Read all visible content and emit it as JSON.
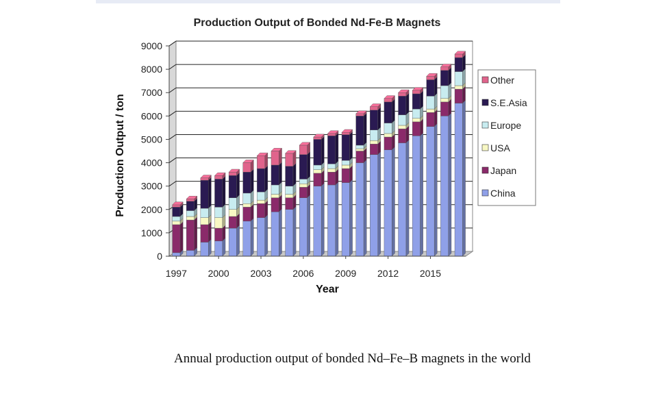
{
  "chart_data": {
    "type": "bar",
    "stacked": true,
    "title": "Production Output of Bonded Nd-Fe-B Magnets",
    "xlabel": "Year",
    "ylabel": "Production Output / ton",
    "ylim": [
      0,
      9000
    ],
    "yticks": [
      "0",
      "1000",
      "2000",
      "3000",
      "4000",
      "5000",
      "6000",
      "7000",
      "8000",
      "9000"
    ],
    "categories": [
      "1997",
      "1998",
      "1999",
      "2000",
      "2001",
      "2002",
      "2003",
      "2004",
      "2005",
      "2006",
      "2007",
      "2008",
      "2009",
      "2010",
      "2011",
      "2012",
      "2013",
      "2014",
      "2015",
      "2016",
      "2017"
    ],
    "xtick_labels": [
      "1997",
      "2000",
      "2003",
      "2006",
      "2009",
      "2012",
      "2015"
    ],
    "grid": true,
    "legend_position": "right",
    "series": [
      {
        "name": "China",
        "color": "#8fa0e8",
        "values": [
          150,
          250,
          600,
          650,
          1200,
          1500,
          1650,
          1900,
          2000,
          2500,
          3000,
          3050,
          3150,
          4000,
          4350,
          4550,
          4850,
          5150,
          5550,
          6000,
          6550
        ]
      },
      {
        "name": "Japan",
        "color": "#8a2a6a",
        "values": [
          1200,
          1300,
          750,
          550,
          500,
          600,
          600,
          600,
          500,
          450,
          550,
          550,
          600,
          500,
          450,
          550,
          600,
          600,
          600,
          600,
          600
        ]
      },
      {
        "name": "USA",
        "color": "#f8f8c4",
        "values": [
          150,
          150,
          300,
          450,
          300,
          150,
          150,
          150,
          150,
          150,
          150,
          150,
          150,
          100,
          150,
          150,
          150,
          150,
          150,
          150,
          150
        ]
      },
      {
        "name": "Europe",
        "color": "#c8ecf0",
        "values": [
          200,
          250,
          400,
          450,
          500,
          450,
          350,
          400,
          350,
          200,
          200,
          200,
          200,
          150,
          450,
          450,
          450,
          400,
          550,
          550,
          600
        ]
      },
      {
        "name": "S.E.Asia",
        "color": "#2a1a52",
        "values": [
          400,
          400,
          1200,
          1200,
          950,
          900,
          1000,
          850,
          850,
          1050,
          1100,
          1200,
          1100,
          1250,
          850,
          900,
          800,
          650,
          700,
          650,
          600
        ]
      },
      {
        "name": "Other",
        "color": "#e0648c",
        "values": [
          100,
          100,
          100,
          150,
          150,
          400,
          550,
          600,
          550,
          400,
          100,
          100,
          100,
          100,
          150,
          150,
          150,
          150,
          150,
          150,
          150
        ]
      }
    ]
  },
  "caption": "Annual production output of bonded Nd–Fe–B magnets in the world"
}
